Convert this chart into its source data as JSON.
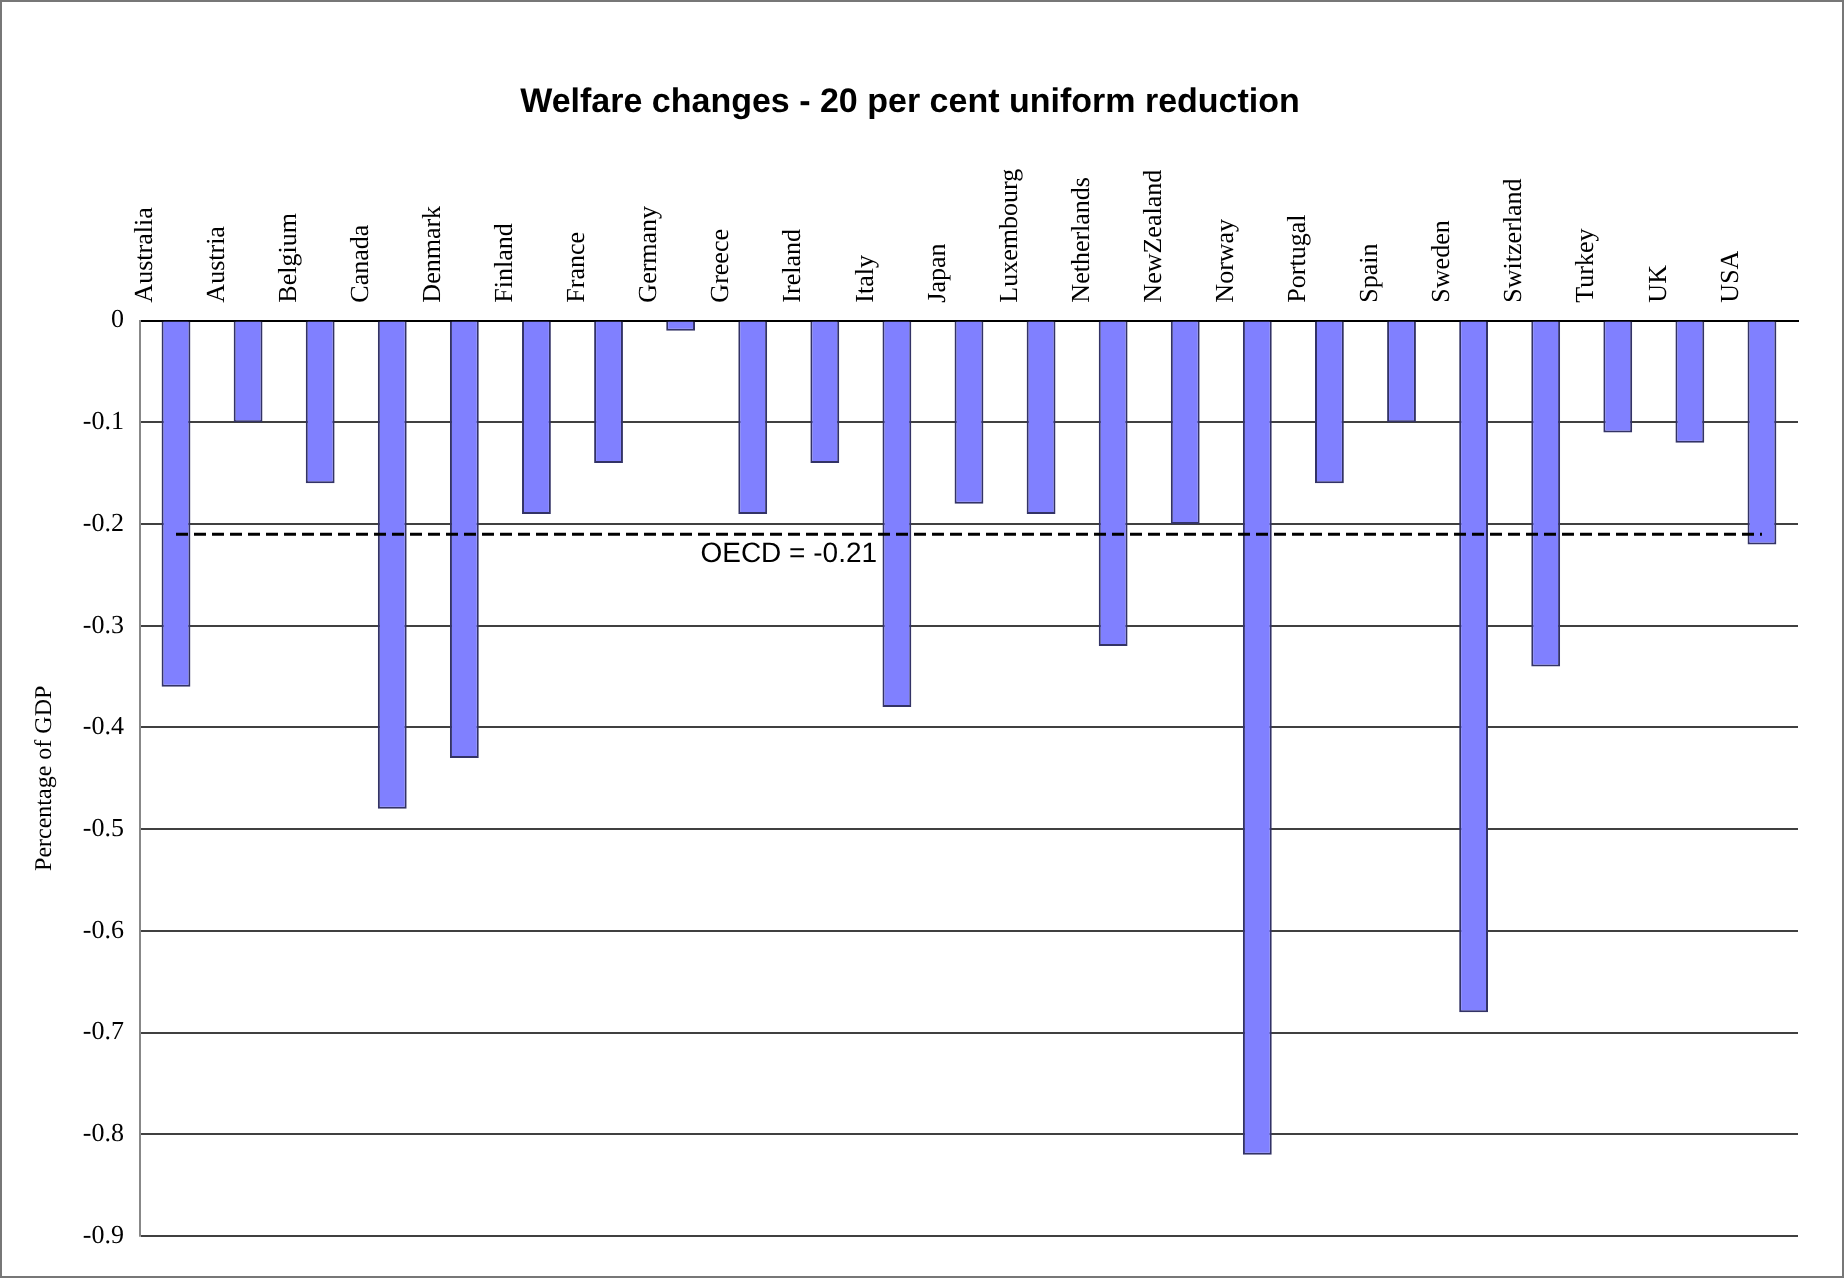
{
  "chart_data": {
    "type": "bar",
    "title": "Welfare changes - 20 per cent uniform reduction",
    "ylabel": "Percentage of GDP",
    "categories": [
      "Australia",
      "Austria",
      "Belgium",
      "Canada",
      "Denmark",
      "Finland",
      "France",
      "Germany",
      "Greece",
      "Ireland",
      "Italy",
      "Japan",
      "Luxembourg",
      "Netherlands",
      "NewZealand",
      "Norway",
      "Portugal",
      "Spain",
      "Sweden",
      "Switzerland",
      "Turkey",
      "UK",
      "USA"
    ],
    "values": [
      -0.36,
      -0.1,
      -0.16,
      -0.48,
      -0.43,
      -0.19,
      -0.14,
      -0.01,
      -0.19,
      -0.14,
      -0.38,
      -0.18,
      -0.19,
      -0.32,
      -0.2,
      -0.82,
      -0.16,
      -0.1,
      -0.68,
      -0.34,
      -0.11,
      -0.12,
      -0.22
    ],
    "color": "#8080ff",
    "ylim": [
      -0.9,
      0
    ],
    "yticks": [
      0,
      -0.1,
      -0.2,
      -0.3,
      -0.4,
      -0.5,
      -0.6,
      -0.7,
      -0.8,
      -0.9
    ],
    "grid": "y",
    "ref_lines": [
      {
        "axis": "y",
        "value": -0.21,
        "label": "OECD = -0.21",
        "color": "#000000",
        "line_style": "dashed"
      }
    ]
  }
}
